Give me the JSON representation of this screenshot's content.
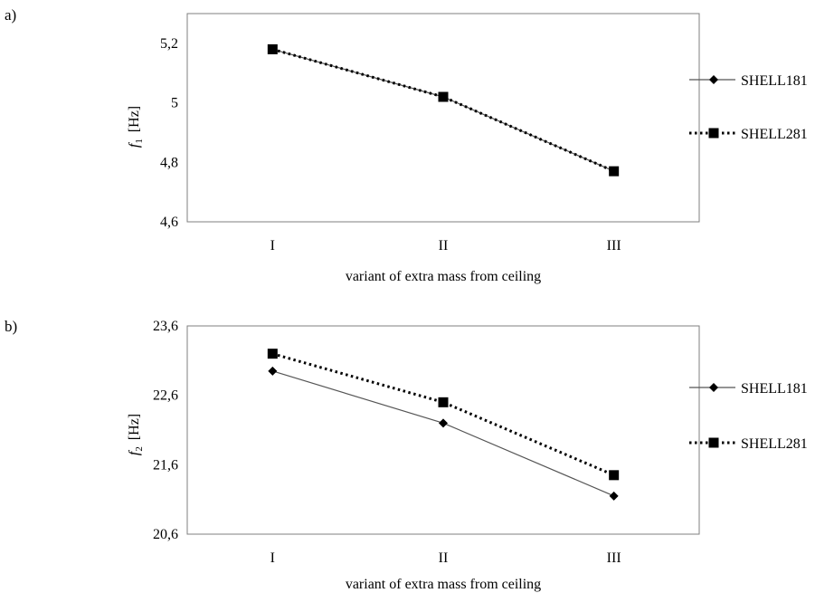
{
  "figure": {
    "panels": [
      {
        "label": "a)"
      },
      {
        "label": "b)"
      }
    ]
  },
  "chart_data": [
    {
      "type": "line",
      "categories": [
        "I",
        "II",
        "III"
      ],
      "xlabel": "variant of extra mass from ceiling",
      "ylabel": {
        "symbol": "f",
        "subscript": "1",
        "unit": "[Hz]"
      },
      "ylim": [
        4.6,
        5.3
      ],
      "yticks": [
        "4,6",
        "4,8",
        "5",
        "5,2"
      ],
      "grid": false,
      "legend": "right",
      "series": [
        {
          "name": "SHELL181",
          "values": [
            5.18,
            5.02,
            4.77
          ],
          "marker": "diamond",
          "line": "solid",
          "color": "#555555"
        },
        {
          "name": "SHELL281",
          "values": [
            5.18,
            5.02,
            4.77
          ],
          "marker": "square",
          "line": "dotted",
          "color": "#000000"
        }
      ]
    },
    {
      "type": "line",
      "categories": [
        "I",
        "II",
        "III"
      ],
      "xlabel": "variant of extra mass from ceiling",
      "ylabel": {
        "symbol": "f",
        "subscript": "2",
        "unit": "[Hz]"
      },
      "ylim": [
        20.6,
        23.6
      ],
      "yticks": [
        "20,6",
        "21,6",
        "22,6",
        "23,6"
      ],
      "grid": false,
      "legend": "right",
      "series": [
        {
          "name": "SHELL181",
          "values": [
            22.95,
            22.2,
            21.15
          ],
          "marker": "diamond",
          "line": "solid",
          "color": "#555555"
        },
        {
          "name": "SHELL281",
          "values": [
            23.2,
            22.5,
            21.45
          ],
          "marker": "square",
          "line": "dotted",
          "color": "#000000"
        }
      ]
    }
  ]
}
